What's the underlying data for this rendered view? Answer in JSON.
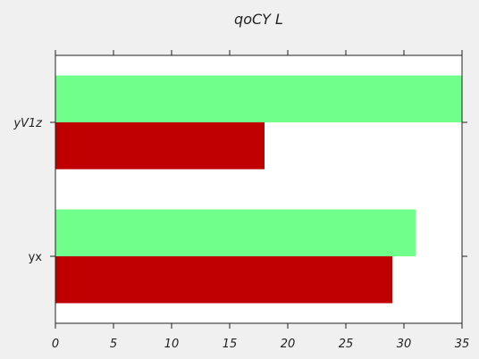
{
  "chart_data": {
    "type": "bar",
    "orientation": "horizontal",
    "title": "qoCY  L",
    "xlabel": "",
    "ylabel": "",
    "categories": [
      "yV1z",
      "yx"
    ],
    "series": [
      {
        "values": [
          35,
          31
        ],
        "color": "#6fff8a"
      },
      {
        "values": [
          18,
          29
        ],
        "color": "#c00000"
      }
    ],
    "xlim": [
      0,
      35
    ],
    "xticks": [
      0,
      5,
      10,
      15,
      20,
      25,
      30,
      35
    ],
    "grid": false,
    "legend": "none"
  },
  "colors": {
    "background": "#f0f0f0",
    "plot_background": "#ffffff",
    "axis": "#222222"
  }
}
